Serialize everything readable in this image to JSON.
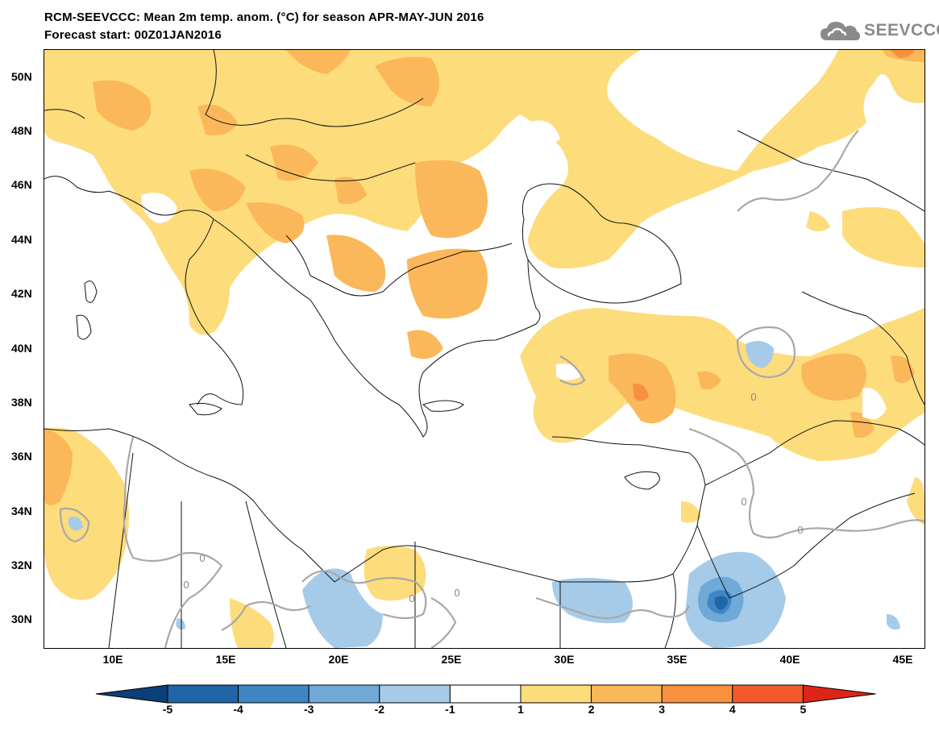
{
  "header": {
    "title_line1": "RCM-SEEVCCC: Mean 2m temp. anom. (°C) for season APR-MAY-JUN 2016",
    "title_line2": "Forecast start: 00Z01JAN2016",
    "logo_text": "SEEVCCC",
    "logo_icon": "cloud-icon"
  },
  "map": {
    "lat_labels": [
      "50N",
      "48N",
      "46N",
      "44N",
      "42N",
      "40N",
      "38N",
      "36N",
      "34N",
      "32N",
      "30N"
    ],
    "lon_labels": [
      "10E",
      "15E",
      "20E",
      "25E",
      "30E",
      "35E",
      "40E",
      "45E"
    ],
    "contour_labels": [
      "0",
      "0",
      "0",
      "0",
      "0",
      "0",
      "0"
    ]
  },
  "legend": {
    "ticks": [
      "-5",
      "-4",
      "-3",
      "-2",
      "-1",
      "1",
      "2",
      "3",
      "4",
      "5"
    ],
    "colors": [
      "#0b3f7a",
      "#1f65a8",
      "#3f87c4",
      "#6fa9d8",
      "#a6cbe8",
      "#ffffff",
      "#fddc7c",
      "#fbb85a",
      "#f8913f",
      "#f25a2c",
      "#dd2418"
    ]
  }
}
